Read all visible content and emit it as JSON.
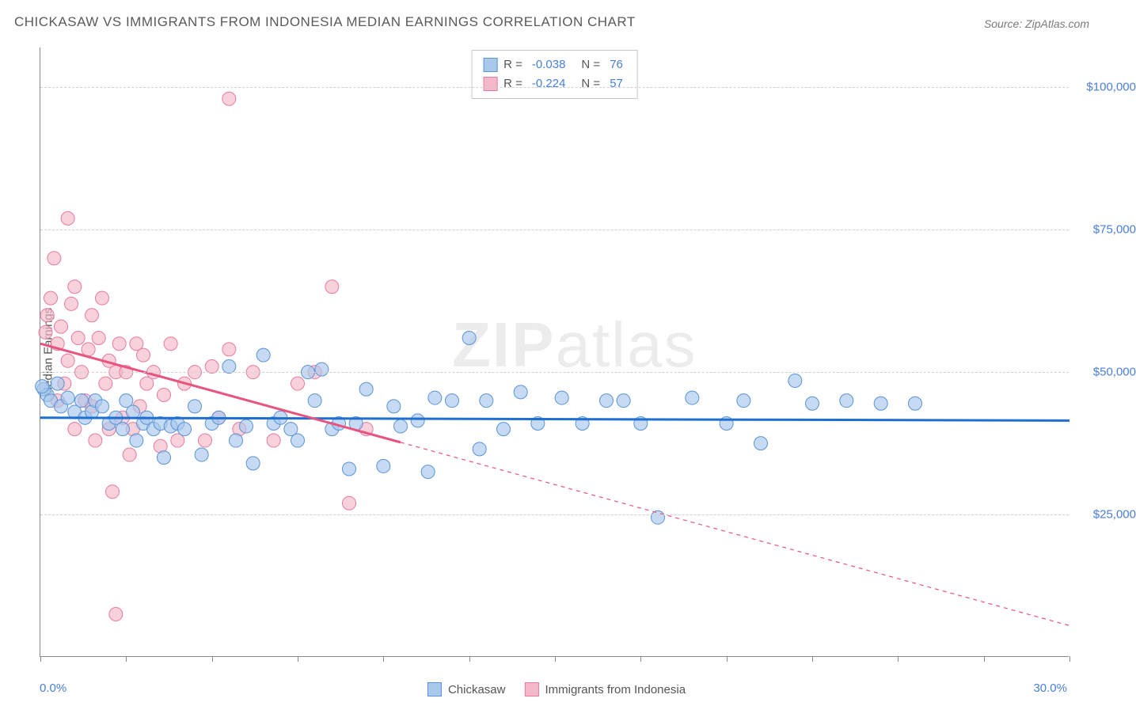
{
  "title": "CHICKASAW VS IMMIGRANTS FROM INDONESIA MEDIAN EARNINGS CORRELATION CHART",
  "source": "Source: ZipAtlas.com",
  "watermark_prefix": "ZIP",
  "watermark_suffix": "atlas",
  "chart": {
    "type": "scatter",
    "y_axis_title": "Median Earnings",
    "xlim": [
      0,
      30
    ],
    "ylim": [
      0,
      107000
    ],
    "x_tick_labels": {
      "min": "0.0%",
      "max": "30.0%"
    },
    "x_ticks_pct": [
      0,
      2.5,
      5,
      7.5,
      10,
      12.5,
      15,
      17.5,
      20,
      22.5,
      25,
      27.5,
      30
    ],
    "y_ticks": [
      {
        "v": 25000,
        "label": "$25,000"
      },
      {
        "v": 50000,
        "label": "$50,000"
      },
      {
        "v": 75000,
        "label": "$75,000"
      },
      {
        "v": 100000,
        "label": "$100,000"
      }
    ],
    "grid_color": "#d0d0d0",
    "series": [
      {
        "name": "Chickasaw",
        "fill": "#a8c8ec",
        "stroke": "#5a93d6",
        "line_color": "#1f6fd0",
        "R": "-0.038",
        "N": "76",
        "trend": {
          "x1": 0,
          "y1": 42000,
          "x2": 30,
          "y2": 41500,
          "dashed_from": null
        },
        "points": [
          [
            0.1,
            47000
          ],
          [
            0.2,
            46000
          ],
          [
            0.3,
            45000
          ],
          [
            0.5,
            48000
          ],
          [
            0.6,
            44000
          ],
          [
            0.8,
            45500
          ],
          [
            1.0,
            43000
          ],
          [
            1.2,
            45000
          ],
          [
            1.3,
            42000
          ],
          [
            1.5,
            43000
          ],
          [
            1.6,
            45000
          ],
          [
            1.8,
            44000
          ],
          [
            2.0,
            41000
          ],
          [
            2.2,
            42000
          ],
          [
            2.4,
            40000
          ],
          [
            2.5,
            45000
          ],
          [
            2.7,
            43000
          ],
          [
            2.8,
            38000
          ],
          [
            3.0,
            41000
          ],
          [
            3.1,
            42000
          ],
          [
            3.3,
            40000
          ],
          [
            3.5,
            41000
          ],
          [
            3.6,
            35000
          ],
          [
            3.8,
            40500
          ],
          [
            4.0,
            41000
          ],
          [
            4.2,
            40000
          ],
          [
            4.5,
            44000
          ],
          [
            4.7,
            35500
          ],
          [
            5.0,
            41000
          ],
          [
            5.2,
            42000
          ],
          [
            5.5,
            51000
          ],
          [
            5.7,
            38000
          ],
          [
            6.0,
            40500
          ],
          [
            6.2,
            34000
          ],
          [
            6.5,
            53000
          ],
          [
            6.8,
            41000
          ],
          [
            7.0,
            42000
          ],
          [
            7.3,
            40000
          ],
          [
            7.5,
            38000
          ],
          [
            7.8,
            50000
          ],
          [
            8.0,
            45000
          ],
          [
            8.2,
            50500
          ],
          [
            8.5,
            40000
          ],
          [
            8.7,
            41000
          ],
          [
            9.0,
            33000
          ],
          [
            9.2,
            41000
          ],
          [
            9.5,
            47000
          ],
          [
            10.0,
            33500
          ],
          [
            10.3,
            44000
          ],
          [
            10.5,
            40500
          ],
          [
            11.0,
            41500
          ],
          [
            11.3,
            32500
          ],
          [
            11.5,
            45500
          ],
          [
            12.0,
            45000
          ],
          [
            12.5,
            56000
          ],
          [
            12.8,
            36500
          ],
          [
            13.0,
            45000
          ],
          [
            13.5,
            40000
          ],
          [
            14.0,
            46500
          ],
          [
            14.5,
            41000
          ],
          [
            15.2,
            45500
          ],
          [
            15.8,
            41000
          ],
          [
            16.5,
            45000
          ],
          [
            17.0,
            45000
          ],
          [
            17.5,
            41000
          ],
          [
            18.0,
            24500
          ],
          [
            19.0,
            45500
          ],
          [
            20.0,
            41000
          ],
          [
            20.5,
            45000
          ],
          [
            21.0,
            37500
          ],
          [
            22.0,
            48500
          ],
          [
            22.5,
            44500
          ],
          [
            23.5,
            45000
          ],
          [
            24.5,
            44500
          ],
          [
            25.5,
            44500
          ],
          [
            0.05,
            47500
          ]
        ]
      },
      {
        "name": "Immigrants from Indonesia",
        "fill": "#f5b8c8",
        "stroke": "#e87ba0",
        "line_color": "#e8547f",
        "R": "-0.224",
        "N": "57",
        "trend": {
          "x1": 0,
          "y1": 55000,
          "x2": 30,
          "y2": 5500,
          "dashed_from": 10.5
        },
        "points": [
          [
            0.2,
            60000
          ],
          [
            0.3,
            63000
          ],
          [
            0.4,
            70000
          ],
          [
            0.5,
            45000
          ],
          [
            0.5,
            55000
          ],
          [
            0.6,
            58000
          ],
          [
            0.7,
            48000
          ],
          [
            0.8,
            77000
          ],
          [
            0.8,
            52000
          ],
          [
            0.9,
            62000
          ],
          [
            1.0,
            65000
          ],
          [
            1.0,
            40000
          ],
          [
            1.1,
            56000
          ],
          [
            1.2,
            50000
          ],
          [
            1.3,
            45000
          ],
          [
            1.4,
            54000
          ],
          [
            1.5,
            44000
          ],
          [
            1.5,
            60000
          ],
          [
            1.6,
            38000
          ],
          [
            1.7,
            56000
          ],
          [
            1.8,
            63000
          ],
          [
            1.9,
            48000
          ],
          [
            2.0,
            52000
          ],
          [
            2.0,
            40000
          ],
          [
            2.1,
            29000
          ],
          [
            2.2,
            50000
          ],
          [
            2.3,
            55000
          ],
          [
            2.4,
            42000
          ],
          [
            2.5,
            50000
          ],
          [
            2.6,
            35500
          ],
          [
            2.7,
            40000
          ],
          [
            2.8,
            55000
          ],
          [
            2.9,
            44000
          ],
          [
            3.0,
            53000
          ],
          [
            3.1,
            48000
          ],
          [
            3.3,
            50000
          ],
          [
            3.5,
            37000
          ],
          [
            3.6,
            46000
          ],
          [
            3.8,
            55000
          ],
          [
            4.0,
            38000
          ],
          [
            4.2,
            48000
          ],
          [
            4.5,
            50000
          ],
          [
            4.8,
            38000
          ],
          [
            5.0,
            51000
          ],
          [
            5.2,
            42000
          ],
          [
            5.5,
            54000
          ],
          [
            5.8,
            40000
          ],
          [
            5.5,
            98000
          ],
          [
            6.2,
            50000
          ],
          [
            6.8,
            38000
          ],
          [
            7.5,
            48000
          ],
          [
            8.0,
            50000
          ],
          [
            8.5,
            65000
          ],
          [
            9.0,
            27000
          ],
          [
            9.5,
            40000
          ],
          [
            2.2,
            7500
          ],
          [
            0.15,
            57000
          ]
        ]
      }
    ]
  },
  "legend_labels": {
    "R": "R =",
    "N": "N ="
  }
}
